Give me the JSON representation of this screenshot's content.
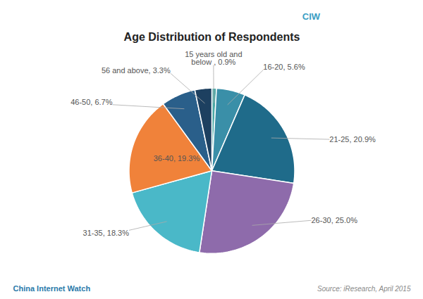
{
  "chart_data": {
    "type": "pie",
    "title": "Age Distribution of Respondents",
    "categories": [
      "15 years old and\nbelow , 0.9%",
      "16-20, 5.6%",
      "21-25, 20.9%",
      "26-30, 25.0%",
      "31-35, 18.3%",
      "36-40, 19.3%",
      "46-50, 6.7%",
      "56 and above, 3.3%"
    ],
    "values": [
      0.9,
      5.6,
      20.9,
      25.0,
      18.3,
      19.3,
      6.7,
      3.3
    ],
    "colors": [
      "#4da9a6",
      "#3a8fa8",
      "#1f6b8a",
      "#8e6bab",
      "#4ab8c8",
      "#f0823a",
      "#2a5f8a",
      "#1d4060"
    ],
    "annotations": [
      "CIW",
      "China Internet Watch",
      "Source: iResearch, April 2015"
    ]
  }
}
